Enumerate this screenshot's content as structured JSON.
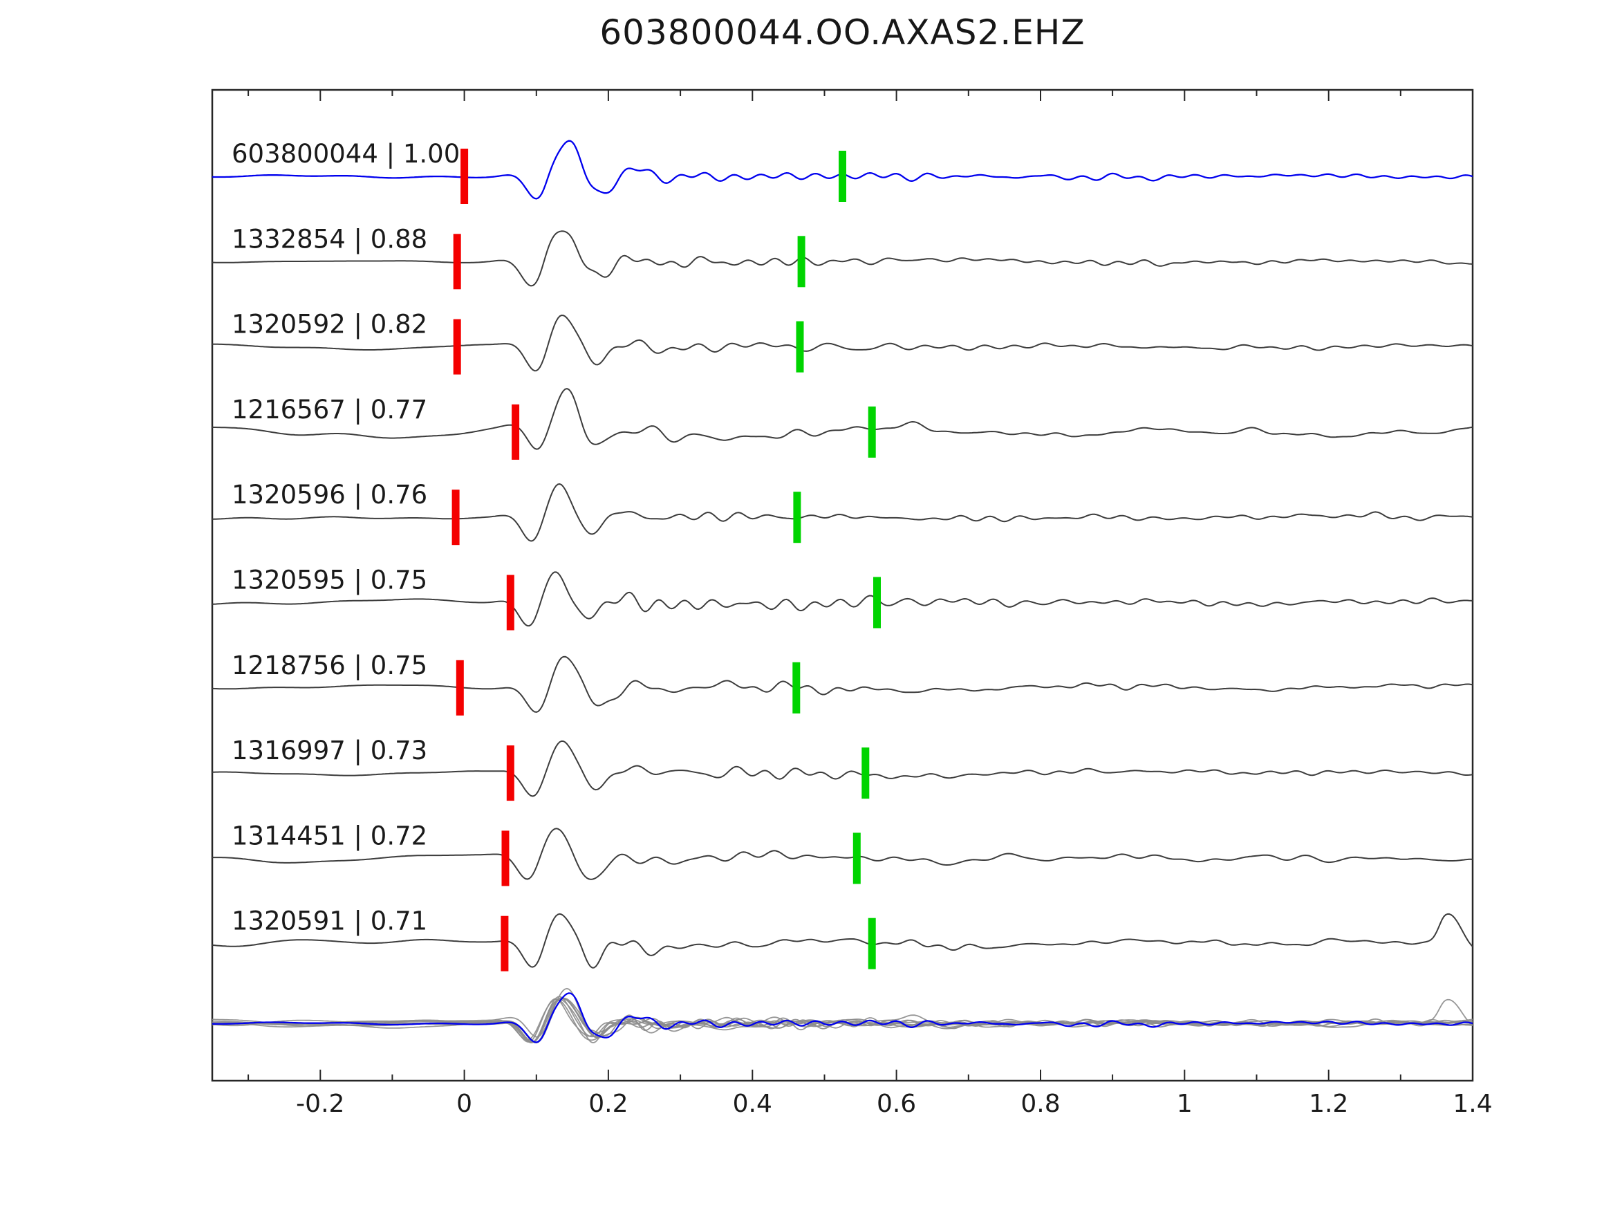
{
  "title": "603800044.OO.AXAS2.EHZ",
  "chart_data": {
    "type": "line",
    "title": "603800044.OO.AXAS2.EHZ",
    "subtitle": "",
    "xlabel": "",
    "ylabel": "",
    "xlim": [
      -0.35,
      1.4
    ],
    "xticks_major": [
      -0.2,
      0,
      0.2,
      0.4,
      0.6,
      0.8,
      1,
      1.2,
      1.4
    ],
    "xtick_labels": [
      "-0.2",
      "0",
      "0.2",
      "0.4",
      "0.6",
      "0.8",
      "1",
      "1.2",
      "1.4"
    ],
    "xticks_minor_step": 0.1,
    "grid": false,
    "legend": null,
    "colors": {
      "template_trace": "#0000ee",
      "match_trace": "#3c3c3c",
      "red_pick": "#f40000",
      "green_pick": "#00d400",
      "overlay_gray": "#8c8c8c",
      "axes_border": "#262626",
      "text": "#171717"
    },
    "traces": [
      {
        "id": "603800044",
        "correlation": 1.0,
        "label": "603800044 | 1.00",
        "role": "template",
        "color": "#0000ee",
        "red_pick": 0.0,
        "green_pick": 0.525,
        "noise": 0.5
      },
      {
        "id": "1332854",
        "correlation": 0.88,
        "label": "1332854 | 0.88",
        "role": "match",
        "color": "#3c3c3c",
        "red_pick": -0.01,
        "green_pick": 0.468,
        "noise": 0.8
      },
      {
        "id": "1320592",
        "correlation": 0.82,
        "label": "1320592 | 0.82",
        "role": "match",
        "color": "#3c3c3c",
        "red_pick": -0.01,
        "green_pick": 0.466,
        "noise": 0.8
      },
      {
        "id": "1216567",
        "correlation": 0.77,
        "label": "1216567 | 0.77",
        "role": "match",
        "color": "#3c3c3c",
        "red_pick": 0.071,
        "green_pick": 0.566,
        "noise": 1.7
      },
      {
        "id": "1320596",
        "correlation": 0.76,
        "label": "1320596 | 0.76",
        "role": "match",
        "color": "#3c3c3c",
        "red_pick": -0.012,
        "green_pick": 0.462,
        "noise": 0.9
      },
      {
        "id": "1320595",
        "correlation": 0.75,
        "label": "1320595 | 0.75",
        "role": "match",
        "color": "#3c3c3c",
        "red_pick": 0.064,
        "green_pick": 0.573,
        "noise": 0.9
      },
      {
        "id": "1218756",
        "correlation": 0.75,
        "label": "1218756 | 0.75",
        "role": "match",
        "color": "#3c3c3c",
        "red_pick": -0.006,
        "green_pick": 0.461,
        "noise": 1.0
      },
      {
        "id": "1316997",
        "correlation": 0.73,
        "label": "1316997 | 0.73",
        "role": "match",
        "color": "#3c3c3c",
        "red_pick": 0.064,
        "green_pick": 0.557,
        "noise": 1.0
      },
      {
        "id": "1314451",
        "correlation": 0.72,
        "label": "1314451 | 0.72",
        "role": "match",
        "color": "#3c3c3c",
        "red_pick": 0.057,
        "green_pick": 0.545,
        "noise": 1.3
      },
      {
        "id": "1320591",
        "correlation": 0.71,
        "label": "1320591 | 0.71",
        "role": "match",
        "color": "#3c3c3c",
        "red_pick": 0.056,
        "green_pick": 0.566,
        "noise": 1.5,
        "end_burst": true
      }
    ],
    "overlay": {
      "description": "all matched waveforms superimposed in gray with the template waveform in blue",
      "color_gray": "#8c8c8c",
      "color_blue": "#0000ee"
    }
  }
}
